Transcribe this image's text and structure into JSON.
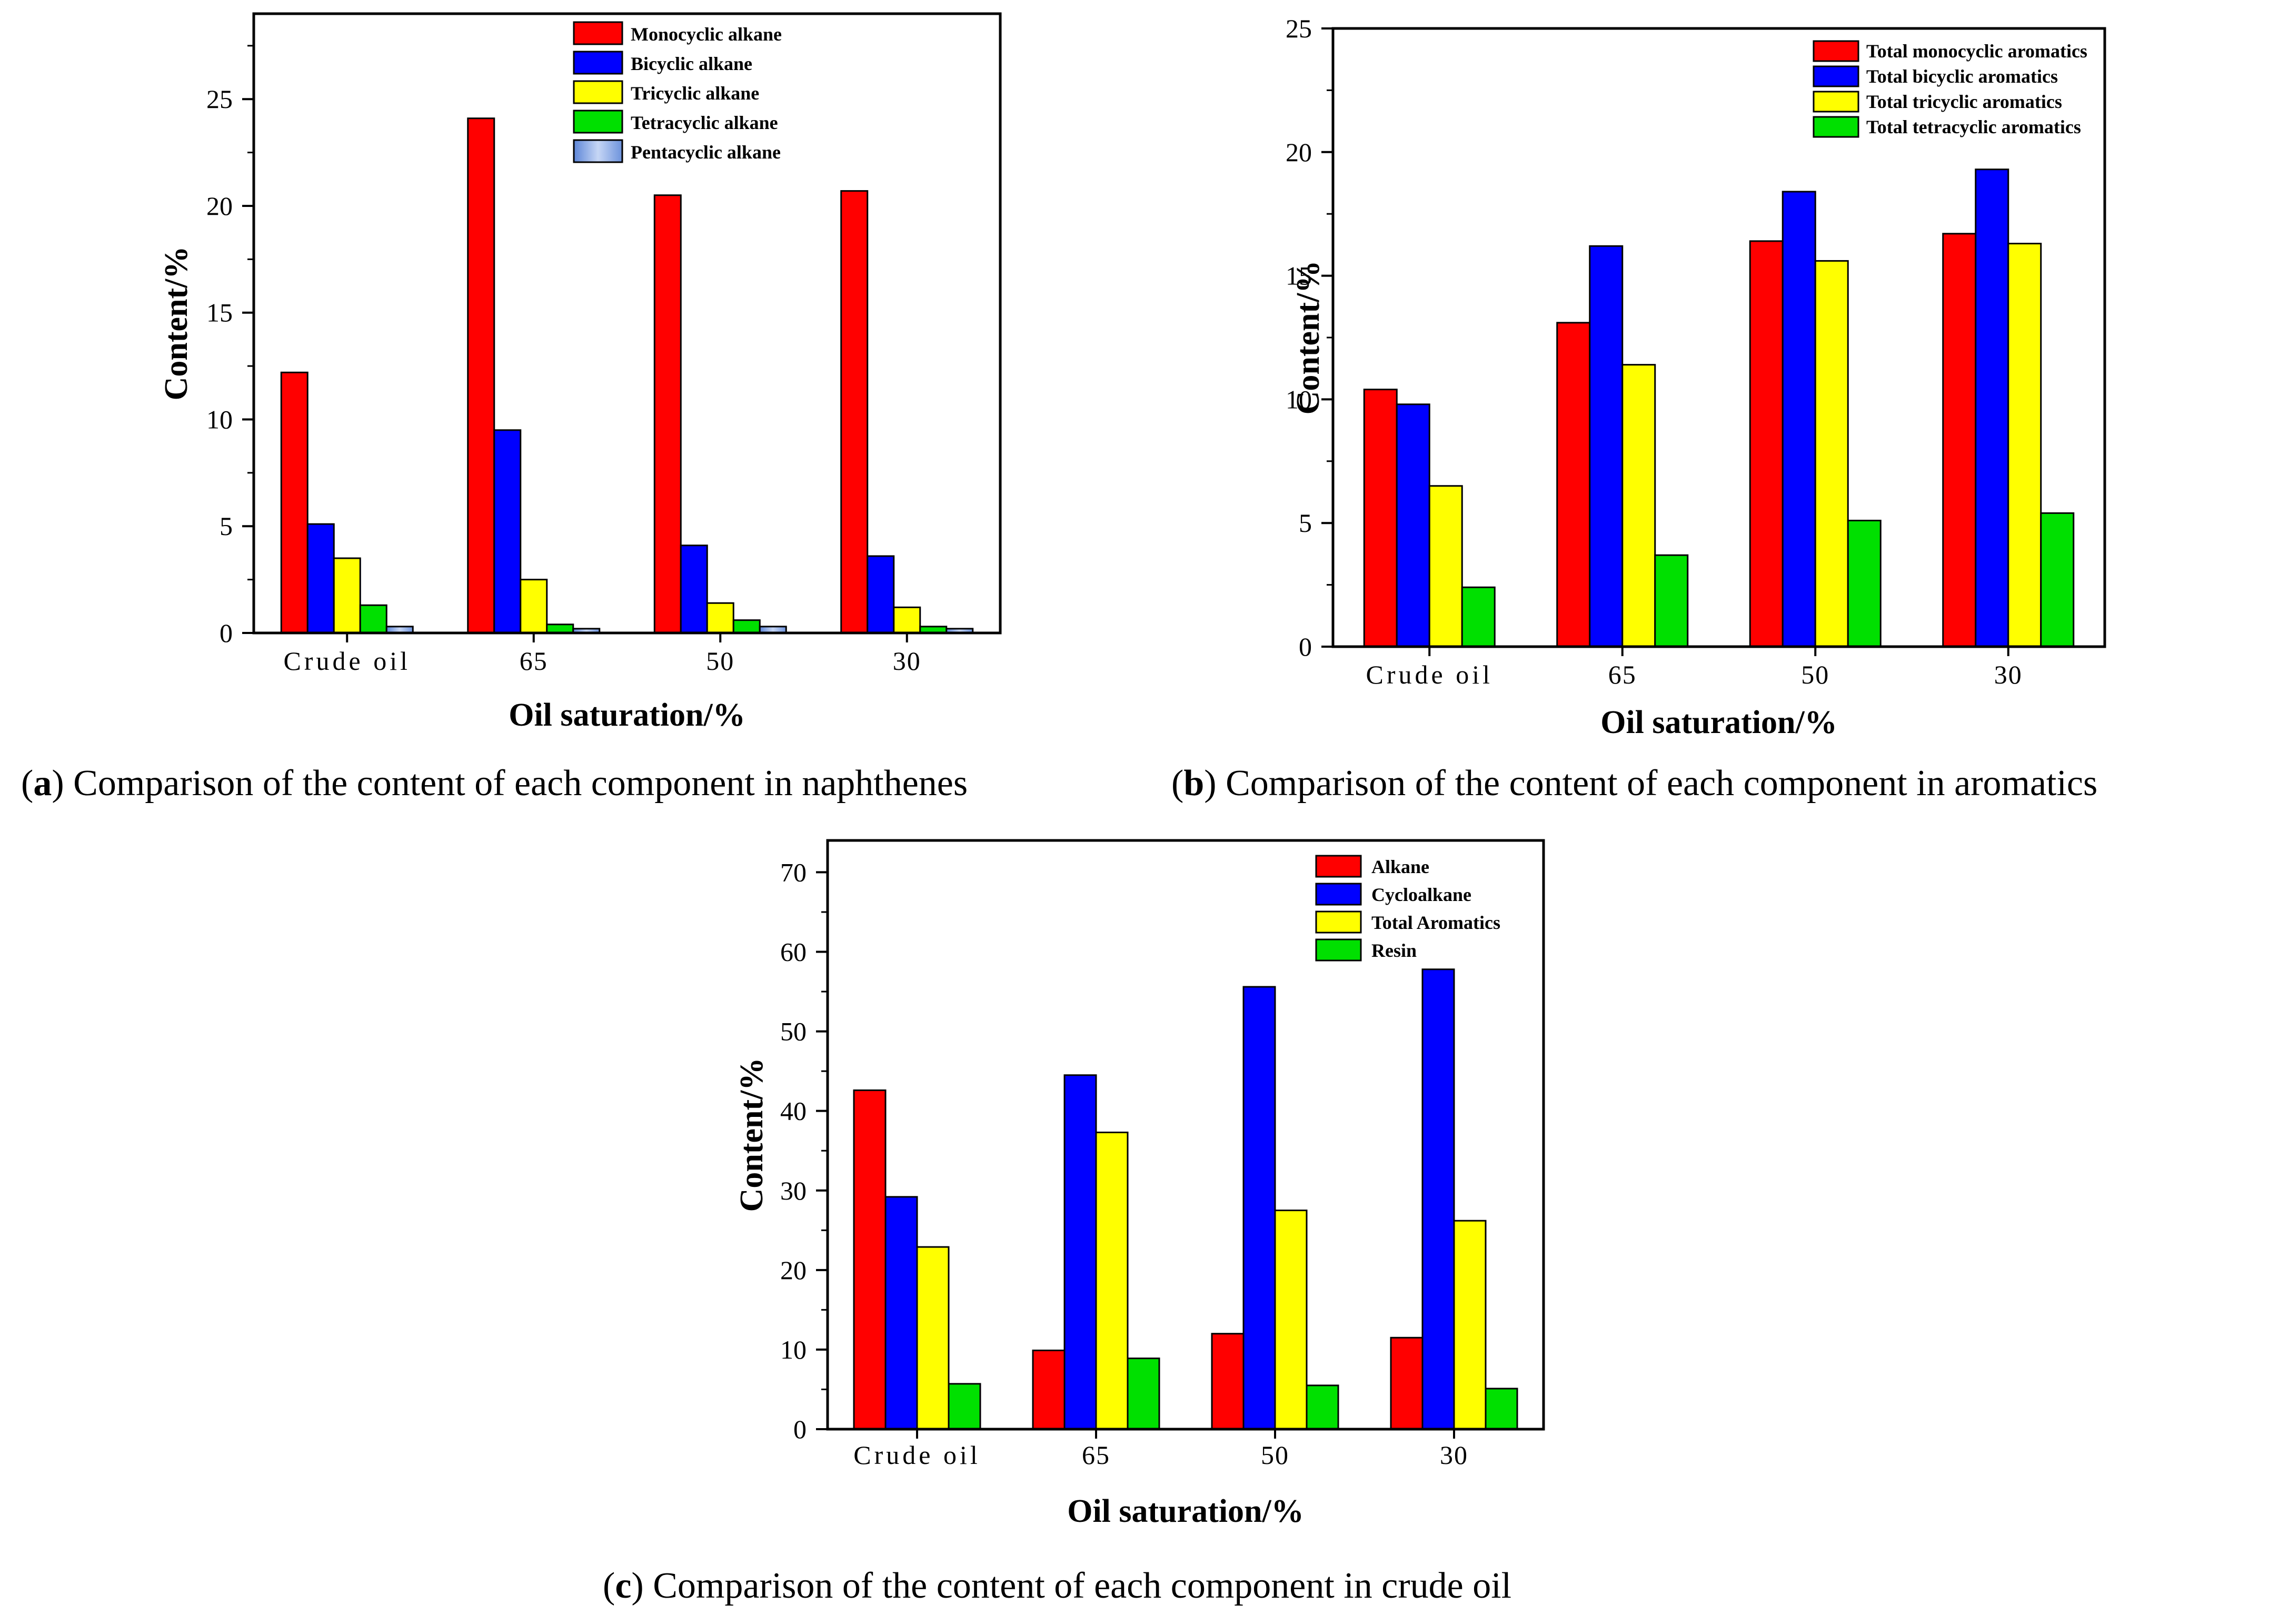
{
  "colors": {
    "red": "#ff0000",
    "blue": "#0000ff",
    "yellow": "#ffff00",
    "green": "#00e000",
    "lightblue": "#9db7ea"
  },
  "captions": {
    "a_letter": "a",
    "a_text": " Comparison of the content of each component in naphthenes",
    "b_letter": "b",
    "b_text": " Comparison of the content of each component in aromatics",
    "c_letter": "c",
    "c_text": " Comparison of the content of each component in crude oil"
  },
  "chart_data": [
    {
      "id": "a",
      "type": "bar",
      "categories": [
        "Crude oil",
        "65",
        "50",
        "30"
      ],
      "xlabel": "Oil saturation/%",
      "ylabel": "Content/%",
      "ylim": [
        0,
        29
      ],
      "yticks": [
        0,
        5,
        10,
        15,
        20,
        25
      ],
      "legend": "top-right",
      "series": [
        {
          "name": "Monocyclic alkane",
          "color": "red",
          "values": [
            12.2,
            24.1,
            20.5,
            20.7
          ]
        },
        {
          "name": "Bicyclic alkane",
          "color": "blue",
          "values": [
            5.1,
            9.5,
            4.1,
            3.6
          ]
        },
        {
          "name": "Tricyclic alkane",
          "color": "yellow",
          "values": [
            3.5,
            2.5,
            1.4,
            1.2
          ]
        },
        {
          "name": "Tetracyclic alkane",
          "color": "green",
          "values": [
            1.3,
            0.4,
            0.6,
            0.3
          ]
        },
        {
          "name": "Pentacyclic alkane",
          "color": "lightblue",
          "values": [
            0.3,
            0.2,
            0.3,
            0.2
          ]
        }
      ]
    },
    {
      "id": "b",
      "type": "bar",
      "categories": [
        "Crude oil",
        "65",
        "50",
        "30"
      ],
      "xlabel": "Oil saturation/%",
      "ylabel": "Content/%",
      "ylim": [
        0,
        25
      ],
      "yticks": [
        0,
        5,
        10,
        15,
        20,
        25
      ],
      "legend": "top-right",
      "series": [
        {
          "name": "Total monocyclic aromatics",
          "color": "red",
          "values": [
            10.4,
            13.1,
            16.4,
            16.7
          ]
        },
        {
          "name": "Total bicyclic aromatics",
          "color": "blue",
          "values": [
            9.8,
            16.2,
            18.4,
            19.3
          ]
        },
        {
          "name": "Total tricyclic aromatics",
          "color": "yellow",
          "values": [
            6.5,
            11.4,
            15.6,
            16.3
          ]
        },
        {
          "name": "Total tetracyclic aromatics",
          "color": "green",
          "values": [
            2.4,
            3.7,
            5.1,
            5.4
          ]
        }
      ]
    },
    {
      "id": "c",
      "type": "bar",
      "categories": [
        "Crude oil",
        "65",
        "50",
        "30"
      ],
      "xlabel": "Oil saturation/%",
      "ylabel": "Content/%",
      "ylim": [
        0,
        74
      ],
      "yticks": [
        0,
        10,
        20,
        30,
        40,
        50,
        60,
        70
      ],
      "legend": "top-right",
      "series": [
        {
          "name": "Alkane",
          "color": "red",
          "values": [
            42.6,
            9.9,
            12.0,
            11.5
          ]
        },
        {
          "name": "Cycloalkane",
          "color": "blue",
          "values": [
            29.2,
            44.5,
            55.6,
            57.8
          ]
        },
        {
          "name": "Total Aromatics",
          "color": "yellow",
          "values": [
            22.9,
            37.3,
            27.5,
            26.2
          ]
        },
        {
          "name": "Resin",
          "color": "green",
          "values": [
            5.7,
            8.9,
            5.5,
            5.1
          ]
        }
      ]
    }
  ]
}
